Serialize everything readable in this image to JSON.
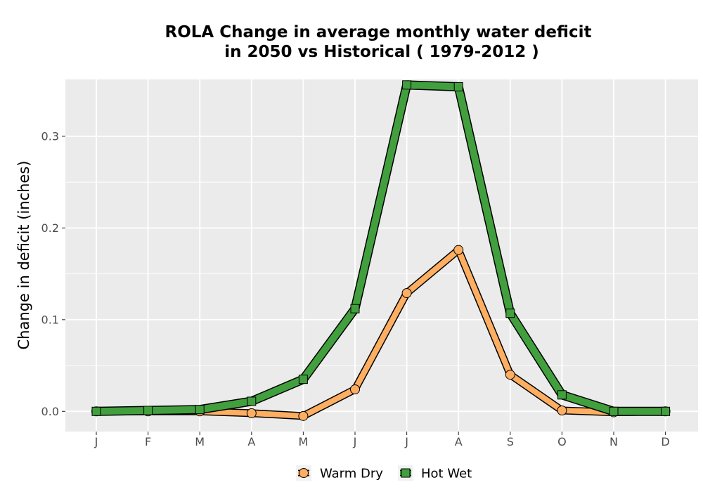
{
  "chart_data": {
    "type": "line",
    "title_lines": [
      "ROLA  Change in average monthly water deficit",
      "in 2050 vs Historical ( 1979-2012 )"
    ],
    "xlabel": "",
    "ylabel": "Change in deficit (inches)",
    "categories": [
      "J",
      "F",
      "M",
      "A",
      "M",
      "J",
      "J",
      "A",
      "S",
      "O",
      "N",
      "D"
    ],
    "ylim": [
      -0.022,
      0.362
    ],
    "yticks": [
      0.0,
      0.1,
      0.2,
      0.3
    ],
    "ytick_labels": [
      "0.0",
      "0.1",
      "0.2",
      "0.3"
    ],
    "grid": true,
    "legend_position": "bottom",
    "series": [
      {
        "name": "Warm Dry",
        "marker": "circle",
        "color": "#fdae61",
        "values": [
          0.0,
          0.0,
          0.0,
          -0.002,
          -0.005,
          0.024,
          0.129,
          0.176,
          0.04,
          0.001,
          -0.001,
          0.0
        ]
      },
      {
        "name": "Hot Wet",
        "marker": "square",
        "color": "#41a03d",
        "values": [
          0.0,
          0.001,
          0.002,
          0.011,
          0.035,
          0.112,
          0.356,
          0.354,
          0.107,
          0.018,
          0.0,
          0.0
        ]
      }
    ]
  }
}
